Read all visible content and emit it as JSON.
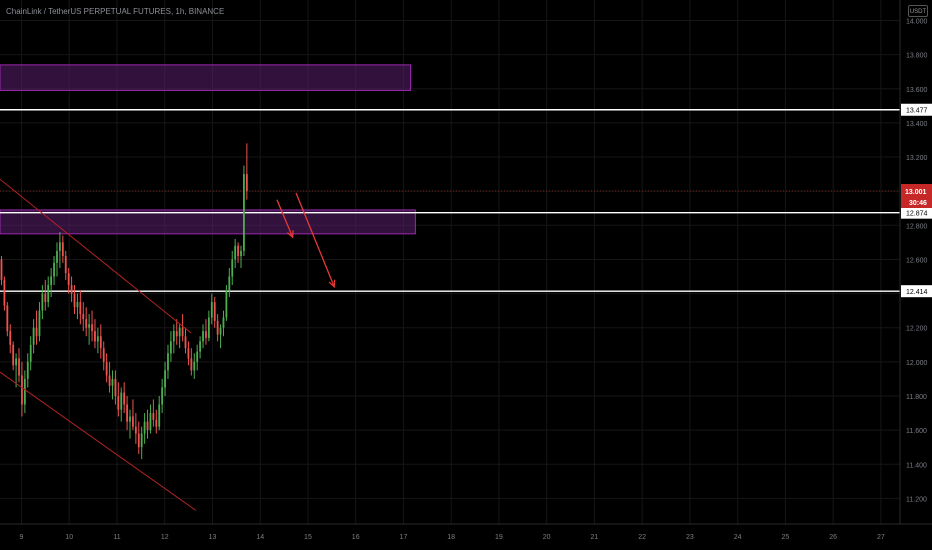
{
  "header": {
    "symbol_line": "ChainLink / TetherUS PERPETUAL FUTURES, 1h, BINANCE",
    "currency_button": "USDT"
  },
  "colors": {
    "background": "#000000",
    "grid": "#161616",
    "candle_up": "#4caf50",
    "candle_down": "#ef5350",
    "zone_fill": "#5b1f6e",
    "zone_border": "#9c27b0",
    "trendline": "#b22222",
    "arrow": "#e53935",
    "hline": "#ffffff",
    "price_label_bg": "#c62828"
  },
  "chart_data": {
    "type": "candlestick",
    "timeframe": "1h",
    "x_ticks": [
      "9",
      "10",
      "11",
      "12",
      "13",
      "14",
      "15",
      "16",
      "17",
      "18",
      "19",
      "20",
      "21",
      "22",
      "23",
      "24",
      "25",
      "26",
      "27"
    ],
    "y_ticks": [
      14.0,
      13.8,
      13.6,
      13.4,
      13.2,
      13.0,
      12.8,
      12.6,
      12.4,
      12.2,
      12.0,
      11.8,
      11.6,
      11.4,
      11.2
    ],
    "y_tick_labels": [
      "14.000",
      "13.800",
      "13.600",
      "13.400",
      "13.200",
      "13.000",
      "12.800",
      "12.600",
      "12.400",
      "12.200",
      "12.000",
      "11.800",
      "11.600",
      "11.400",
      "11.200"
    ],
    "ylim": [
      11.05,
      14.12
    ],
    "xlim": [
      8.55,
      27.4
    ],
    "last_price": 13.001,
    "last_price_label": "13.001",
    "countdown": "30:46",
    "horizontal_lines": [
      {
        "value": 13.477,
        "label": "13.477"
      },
      {
        "value": 12.874,
        "label": "12.874"
      },
      {
        "value": 12.414,
        "label": "12.414"
      }
    ],
    "zones": [
      {
        "x_start": 8.55,
        "x_end": 17.15,
        "y_low": 13.59,
        "y_high": 13.74
      },
      {
        "x_start": 8.55,
        "x_end": 17.25,
        "y_low": 12.75,
        "y_high": 12.89
      }
    ],
    "trendlines": [
      {
        "x1": 8.55,
        "y1": 13.07,
        "x2": 12.55,
        "y2": 12.17
      },
      {
        "x1": 8.55,
        "y1": 11.94,
        "x2": 12.65,
        "y2": 11.13
      }
    ],
    "arrows": [
      {
        "x1": 14.35,
        "y1": 12.95,
        "x2": 14.68,
        "y2": 12.73
      },
      {
        "x1": 14.75,
        "y1": 12.99,
        "x2": 15.55,
        "y2": 12.44
      }
    ],
    "candles_ohlc": [
      [
        12.68,
        12.72,
        12.58,
        12.6
      ],
      [
        12.6,
        12.62,
        12.45,
        12.48
      ],
      [
        12.48,
        12.5,
        12.3,
        12.33
      ],
      [
        12.33,
        12.35,
        12.15,
        12.18
      ],
      [
        12.18,
        12.22,
        12.05,
        12.1
      ],
      [
        12.1,
        12.12,
        11.95,
        11.98
      ],
      [
        11.98,
        12.05,
        11.85,
        12.02
      ],
      [
        12.02,
        12.08,
        11.88,
        11.92
      ],
      [
        11.92,
        12.0,
        11.68,
        11.75
      ],
      [
        11.75,
        11.95,
        11.7,
        11.9
      ],
      [
        11.9,
        12.05,
        11.85,
        12.0
      ],
      [
        12.0,
        12.15,
        11.95,
        12.1
      ],
      [
        12.1,
        12.25,
        12.05,
        12.2
      ],
      [
        12.2,
        12.3,
        12.1,
        12.15
      ],
      [
        12.15,
        12.35,
        12.12,
        12.3
      ],
      [
        12.3,
        12.45,
        12.25,
        12.4
      ],
      [
        12.4,
        12.48,
        12.3,
        12.35
      ],
      [
        12.35,
        12.5,
        12.32,
        12.45
      ],
      [
        12.45,
        12.55,
        12.38,
        12.5
      ],
      [
        12.5,
        12.62,
        12.45,
        12.58
      ],
      [
        12.58,
        12.7,
        12.5,
        12.65
      ],
      [
        12.65,
        12.76,
        12.55,
        12.7
      ],
      [
        12.7,
        12.74,
        12.58,
        12.62
      ],
      [
        12.62,
        12.65,
        12.48,
        12.52
      ],
      [
        12.52,
        12.55,
        12.4,
        12.45
      ],
      [
        12.45,
        12.5,
        12.35,
        12.4
      ],
      [
        12.4,
        12.45,
        12.28,
        12.32
      ],
      [
        12.32,
        12.4,
        12.25,
        12.35
      ],
      [
        12.35,
        12.42,
        12.22,
        12.28
      ],
      [
        12.28,
        12.35,
        12.18,
        12.25
      ],
      [
        12.25,
        12.32,
        12.15,
        12.2
      ],
      [
        12.2,
        12.28,
        12.1,
        12.22
      ],
      [
        12.22,
        12.3,
        12.12,
        12.18
      ],
      [
        12.18,
        12.25,
        12.08,
        12.12
      ],
      [
        12.12,
        12.2,
        12.05,
        12.15
      ],
      [
        12.15,
        12.22,
        12.02,
        12.08
      ],
      [
        12.08,
        12.12,
        11.95,
        12.0
      ],
      [
        12.0,
        12.05,
        11.88,
        11.92
      ],
      [
        11.92,
        12.0,
        11.82,
        11.86
      ],
      [
        11.86,
        11.95,
        11.78,
        11.9
      ],
      [
        11.9,
        11.95,
        11.75,
        11.8
      ],
      [
        11.8,
        11.88,
        11.68,
        11.72
      ],
      [
        11.72,
        11.85,
        11.65,
        11.82
      ],
      [
        11.82,
        11.88,
        11.7,
        11.75
      ],
      [
        11.75,
        11.8,
        11.6,
        11.65
      ],
      [
        11.65,
        11.72,
        11.55,
        11.68
      ],
      [
        11.68,
        11.78,
        11.6,
        11.62
      ],
      [
        11.62,
        11.7,
        11.52,
        11.58
      ],
      [
        11.58,
        11.65,
        11.46,
        11.5
      ],
      [
        11.5,
        11.62,
        11.43,
        11.58
      ],
      [
        11.58,
        11.7,
        11.52,
        11.65
      ],
      [
        11.65,
        11.72,
        11.55,
        11.6
      ],
      [
        11.6,
        11.75,
        11.58,
        11.7
      ],
      [
        11.7,
        11.78,
        11.62,
        11.66
      ],
      [
        11.66,
        11.72,
        11.58,
        11.62
      ],
      [
        11.62,
        11.8,
        11.6,
        11.75
      ],
      [
        11.75,
        11.9,
        11.7,
        11.85
      ],
      [
        11.85,
        12.0,
        11.8,
        11.95
      ],
      [
        11.95,
        12.1,
        11.9,
        12.05
      ],
      [
        12.05,
        12.18,
        12.0,
        12.12
      ],
      [
        12.12,
        12.22,
        12.05,
        12.18
      ],
      [
        12.18,
        12.25,
        12.1,
        12.15
      ],
      [
        12.15,
        12.22,
        12.08,
        12.2
      ],
      [
        12.2,
        12.28,
        12.12,
        12.15
      ],
      [
        12.15,
        12.2,
        12.05,
        12.08
      ],
      [
        12.08,
        12.12,
        11.98,
        12.02
      ],
      [
        12.02,
        12.08,
        11.92,
        11.95
      ],
      [
        11.95,
        12.05,
        11.9,
        12.0
      ],
      [
        12.0,
        12.1,
        11.95,
        12.06
      ],
      [
        12.06,
        12.15,
        12.02,
        12.12
      ],
      [
        12.12,
        12.22,
        12.08,
        12.18
      ],
      [
        12.18,
        12.25,
        12.1,
        12.14
      ],
      [
        12.14,
        12.3,
        12.12,
        12.26
      ],
      [
        12.26,
        12.4,
        12.22,
        12.35
      ],
      [
        12.35,
        12.38,
        12.2,
        12.24
      ],
      [
        12.24,
        12.28,
        12.12,
        12.16
      ],
      [
        12.16,
        12.22,
        12.08,
        12.2
      ],
      [
        12.2,
        12.3,
        12.15,
        12.26
      ],
      [
        12.26,
        12.45,
        12.24,
        12.42
      ],
      [
        12.42,
        12.55,
        12.38,
        12.5
      ],
      [
        12.5,
        12.65,
        12.45,
        12.6
      ],
      [
        12.6,
        12.72,
        12.55,
        12.68
      ],
      [
        12.68,
        12.7,
        12.58,
        12.62
      ],
      [
        12.62,
        12.68,
        12.55,
        12.65
      ],
      [
        12.65,
        13.15,
        12.62,
        13.1
      ],
      [
        13.1,
        13.28,
        12.95,
        13.0
      ]
    ]
  }
}
